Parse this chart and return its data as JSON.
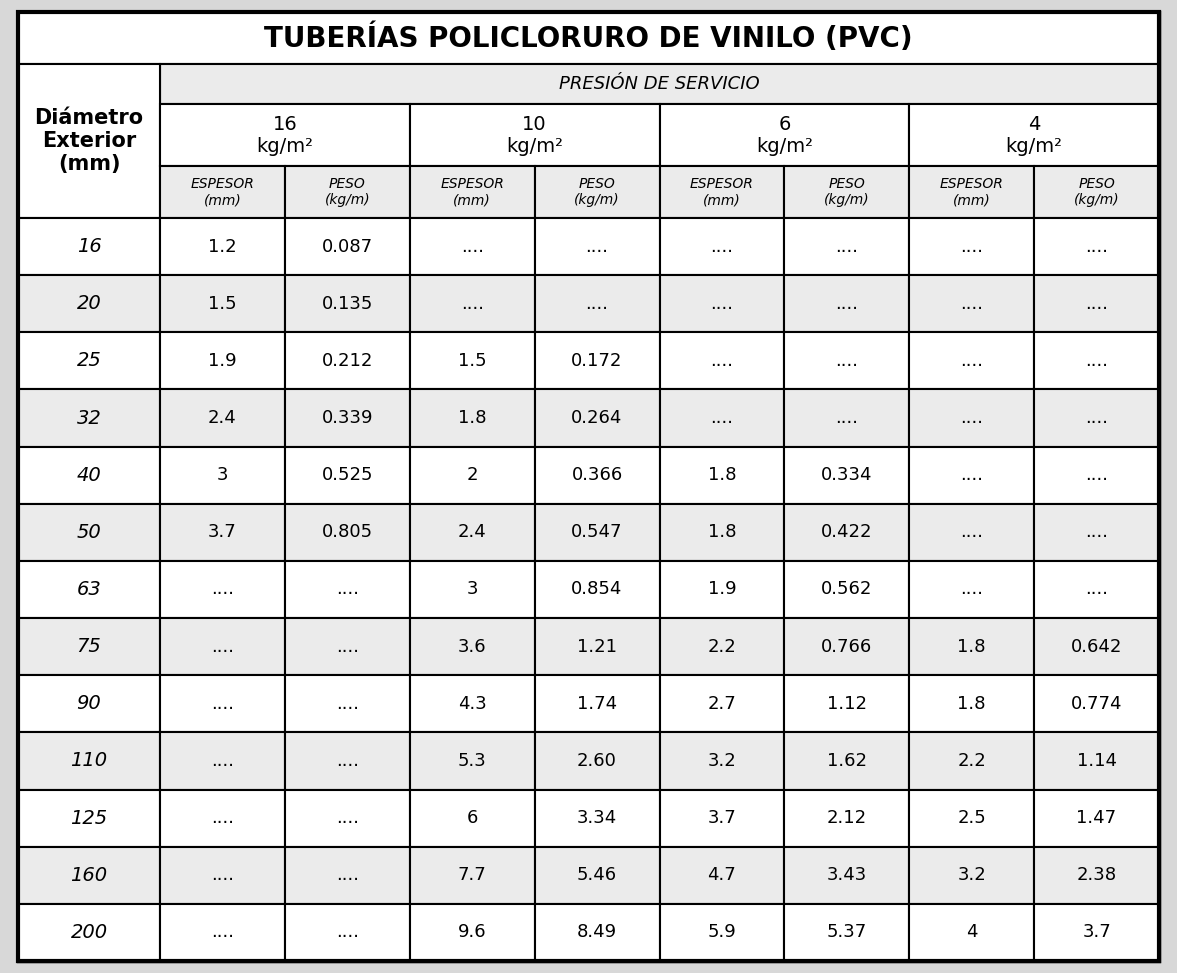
{
  "title": "TUBERÍAS POLICLORURO DE VINILO (PVC)",
  "subtitle": "PRESIÓN DE SERVICIO",
  "col_header_1": "Diámetro\nExterior\n(mm)",
  "pressure_labels": [
    "16",
    "10",
    "6",
    "4"
  ],
  "pressure_unit": "kg/m²",
  "sub_headers_espesor": "ESPESOR\n(mm)",
  "sub_headers_peso": "PESO\n(kg/m)",
  "diameters": [
    "16",
    "20",
    "25",
    "32",
    "40",
    "50",
    "63",
    "75",
    "90",
    "110",
    "125",
    "160",
    "200"
  ],
  "data": [
    [
      "1.2",
      "0.087",
      "....",
      "....",
      "....",
      "....",
      "....",
      "...."
    ],
    [
      "1.5",
      "0.135",
      "....",
      "....",
      "....",
      "....",
      "....",
      "...."
    ],
    [
      "1.9",
      "0.212",
      "1.5",
      "0.172",
      "....",
      "....",
      "....",
      "...."
    ],
    [
      "2.4",
      "0.339",
      "1.8",
      "0.264",
      "....",
      "....",
      "....",
      "...."
    ],
    [
      "3",
      "0.525",
      "2",
      "0.366",
      "1.8",
      "0.334",
      "....",
      "...."
    ],
    [
      "3.7",
      "0.805",
      "2.4",
      "0.547",
      "1.8",
      "0.422",
      "....",
      "...."
    ],
    [
      "....",
      "....",
      "3",
      "0.854",
      "1.9",
      "0.562",
      "....",
      "...."
    ],
    [
      "....",
      "....",
      "3.6",
      "1.21",
      "2.2",
      "0.766",
      "1.8",
      "0.642"
    ],
    [
      "....",
      "....",
      "4.3",
      "1.74",
      "2.7",
      "1.12",
      "1.8",
      "0.774"
    ],
    [
      "....",
      "....",
      "5.3",
      "2.60",
      "3.2",
      "1.62",
      "2.2",
      "1.14"
    ],
    [
      "....",
      "....",
      "6",
      "3.34",
      "3.7",
      "2.12",
      "2.5",
      "1.47"
    ],
    [
      "....",
      "....",
      "7.7",
      "5.46",
      "4.7",
      "3.43",
      "3.2",
      "2.38"
    ],
    [
      "....",
      "....",
      "9.6",
      "8.49",
      "5.9",
      "5.37",
      "4",
      "3.7"
    ]
  ],
  "page_bg": "#d8d8d8",
  "table_bg": "#ebebeb",
  "white_bg": "#ffffff",
  "border_color": "#000000",
  "title_fontsize": 20,
  "subtitle_fontsize": 13,
  "pressure_fontsize": 14,
  "subheader_fontsize": 10,
  "diam_header_fontsize": 15,
  "data_fontsize": 13,
  "diam_col_fontsize": 14
}
